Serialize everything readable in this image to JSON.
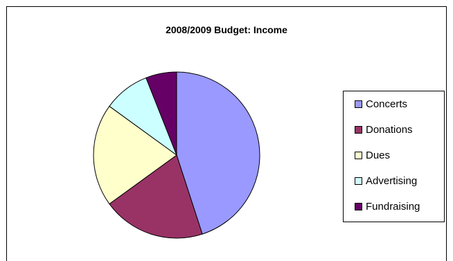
{
  "chart_data": {
    "type": "pie",
    "title": "2008/2009 Budget: Income",
    "categories": [
      "Concerts",
      "Donations",
      "Dues",
      "Advertising",
      "Fundraising"
    ],
    "values": [
      45,
      20,
      20,
      9,
      6
    ],
    "colors": [
      "#9999FF",
      "#993366",
      "#FFFFCC",
      "#CCFFFF",
      "#660066"
    ],
    "legend_position": "right"
  }
}
